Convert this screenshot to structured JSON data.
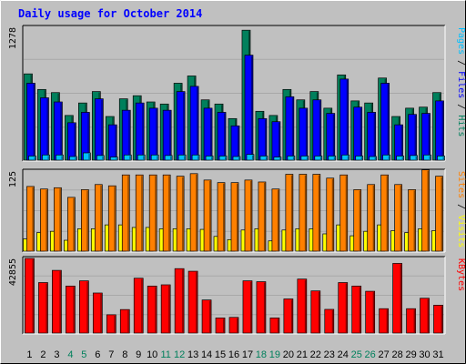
{
  "colors": {
    "background": "#c0c0c0",
    "title": "#0000ff",
    "hits": "#00805c",
    "files": "#0000ff",
    "pages": "#00c0ff",
    "visits": "#ffff00",
    "sites": "#ff8000",
    "kbytes": "#ff0000",
    "weekend_label": "#00805c",
    "weekday_label": "#000000"
  },
  "chart_data": {
    "type": "bar",
    "title": "Daily usage for October 2014",
    "categories": [
      "1",
      "2",
      "3",
      "4",
      "5",
      "6",
      "7",
      "8",
      "9",
      "10",
      "11",
      "12",
      "13",
      "14",
      "15",
      "16",
      "17",
      "18",
      "19",
      "20",
      "21",
      "22",
      "23",
      "24",
      "25",
      "26",
      "27",
      "28",
      "29",
      "30",
      "31"
    ],
    "weekend_days": [
      "4",
      "5",
      "11",
      "12",
      "18",
      "19",
      "25",
      "26"
    ],
    "panels": [
      {
        "axis_max_label": "1278",
        "ylim": [
          0,
          1278
        ],
        "legend": [
          {
            "text": "Pages",
            "color": "#00c0ff"
          },
          {
            "text": " / ",
            "color": "#000000"
          },
          {
            "text": "Files",
            "color": "#0000ff"
          },
          {
            "text": " / ",
            "color": "#000000"
          },
          {
            "text": "Hits",
            "color": "#00805c"
          }
        ],
        "series": [
          {
            "name": "Hits",
            "color": "#00805c",
            "values": [
              830,
              680,
              650,
              430,
              550,
              660,
              420,
              590,
              620,
              560,
              540,
              740,
              810,
              580,
              540,
              400,
              1250,
              470,
              430,
              680,
              580,
              660,
              500,
              820,
              570,
              550,
              790,
              420,
              500,
              510,
              650
            ]
          },
          {
            "name": "Files",
            "color": "#0000ff",
            "values": [
              740,
              600,
              560,
              360,
              460,
              590,
              340,
              480,
              550,
              500,
              480,
              660,
              710,
              500,
              460,
              330,
              1010,
              400,
              370,
              610,
              500,
              580,
              450,
              780,
              510,
              460,
              740,
              340,
              440,
              450,
              570
            ]
          },
          {
            "name": "Pages",
            "color": "#00c0ff",
            "values": [
              40,
              50,
              50,
              35,
              70,
              45,
              30,
              50,
              50,
              50,
              45,
              50,
              50,
              40,
              40,
              35,
              55,
              40,
              30,
              40,
              40,
              40,
              40,
              50,
              40,
              35,
              50,
              40,
              45,
              50,
              40
            ]
          }
        ]
      },
      {
        "axis_max_label": "125",
        "ylim": [
          0,
          125
        ],
        "legend": [
          {
            "text": "Sites",
            "color": "#ff8000"
          },
          {
            "text": " / ",
            "color": "#000000"
          },
          {
            "text": "Visits",
            "color": "#ffff00"
          }
        ],
        "series": [
          {
            "name": "Sites",
            "color": "#ff8000",
            "values": [
              101,
              97,
              99,
              84,
              96,
              104,
              102,
              119,
              119,
              119,
              119,
              117,
              121,
              111,
              107,
              107,
              111,
              108,
              97,
              120,
              120,
              120,
              114,
              119,
              96,
              104,
              119,
              104,
              96,
              127,
              117
            ]
          },
          {
            "name": "Visits",
            "color": "#ffff00",
            "values": [
              19,
              29,
              31,
              17,
              35,
              35,
              41,
              41,
              37,
              37,
              35,
              35,
              35,
              34,
              23,
              18,
              33,
              35,
              16,
              33,
              35,
              35,
              27,
              41,
              24,
              31,
              41,
              32,
              29,
              35,
              32
            ]
          }
        ]
      },
      {
        "axis_max_label": "42855",
        "ylim": [
          0,
          42855
        ],
        "legend": [
          {
            "text": "KBytes",
            "color": "#ff0000"
          }
        ],
        "series": [
          {
            "name": "KBytes",
            "color": "#ff0000",
            "values": [
              42855,
              29000,
              36000,
              27000,
              30000,
              23000,
              10500,
              13500,
              31500,
              27000,
              27700,
              37000,
              35500,
              19000,
              8700,
              9000,
              30000,
              29500,
              8700,
              19600,
              31000,
              24200,
              13600,
              29000,
              27000,
              24000,
              14000,
              40000,
              14000,
              20000,
              16000
            ]
          }
        ]
      }
    ]
  }
}
